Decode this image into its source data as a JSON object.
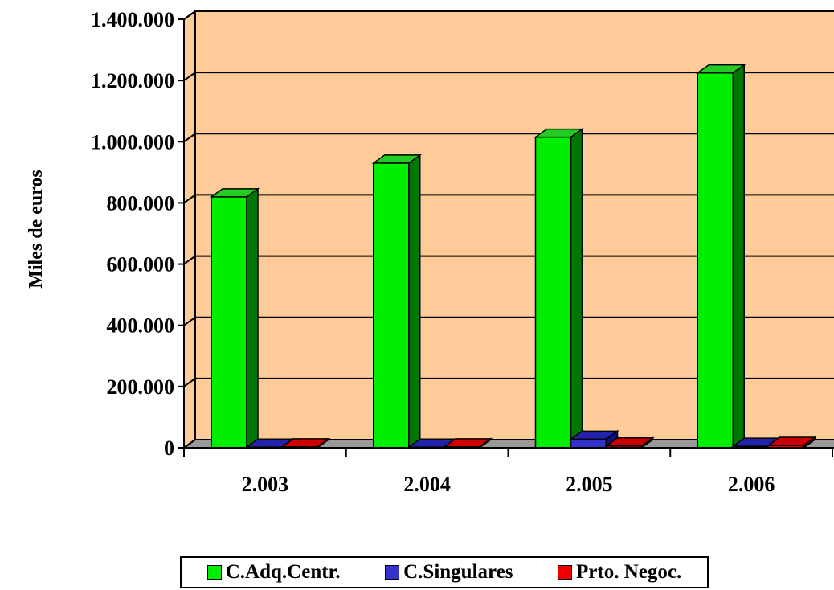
{
  "chart_data": {
    "type": "bar",
    "categories": [
      "2.003",
      "2.004",
      "2.005",
      "2.006"
    ],
    "series": [
      {
        "name": "C.Adq.Centr.",
        "values": [
          820000,
          930000,
          1015000,
          1225000
        ],
        "color": "#00ee00",
        "side": "#007700",
        "top": "#22cc22"
      },
      {
        "name": "C.Singulares",
        "values": [
          2000,
          2000,
          28000,
          5000
        ],
        "color": "#3333cc",
        "side": "#111177",
        "top": "#2222aa"
      },
      {
        "name": "Prto. Negoc.",
        "values": [
          3000,
          3000,
          6000,
          8000
        ],
        "color": "#ee0000",
        "side": "#880000",
        "top": "#cc0000"
      }
    ],
    "yticks": [
      "0",
      "200.000",
      "400.000",
      "600.000",
      "800.000",
      "1.000.000",
      "1.200.000",
      "1.400.000"
    ],
    "ylim": [
      0,
      1400000
    ],
    "ylabel": "Miles de euros",
    "xlabel": "",
    "grid": true,
    "plot_background": "#ffcc99",
    "floor_color": "#999999",
    "legend_position": "bottom"
  },
  "legend": {
    "items": [
      "C.Adq.Centr.",
      "C.Singulares",
      "Prto. Negoc."
    ]
  }
}
